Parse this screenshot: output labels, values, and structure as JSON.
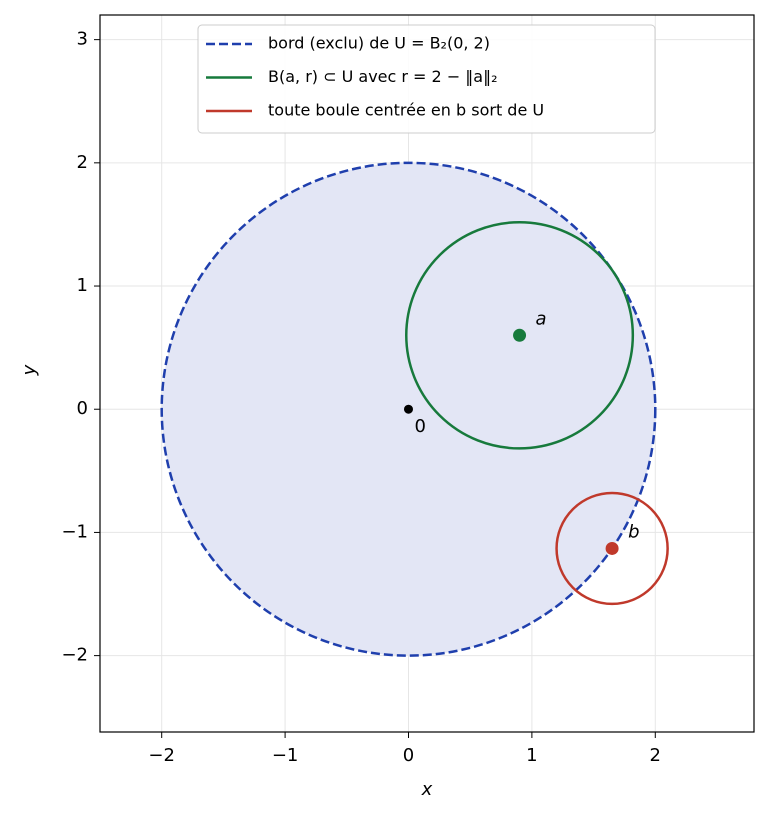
{
  "chart_data": {
    "type": "circle",
    "xlabel": "x",
    "ylabel": "y",
    "xlim": [
      -2.5,
      2.8
    ],
    "ylim": [
      -2.62,
      3.2
    ],
    "xticks": [
      {
        "value": -2,
        "label": "−2"
      },
      {
        "value": -1,
        "label": "−1"
      },
      0,
      1,
      2
    ],
    "yticks": [
      {
        "value": -2,
        "label": "−2"
      },
      {
        "value": -1,
        "label": "−1"
      },
      0,
      1,
      2,
      3
    ],
    "grid": true,
    "legend": "upper center",
    "series": [
      {
        "name": "bord (exclu) de U = B₂(0, 2)",
        "color": "#1f3fad",
        "linestyle": "dashed",
        "fill": "#e3e6f5",
        "x": [
          0
        ],
        "values": [
          0
        ],
        "radius": [
          2
        ]
      },
      {
        "name": "B(a, r) ⊂ U avec r = 2 − ‖a‖₂",
        "color": "#177a3c",
        "linestyle": "solid",
        "x": [
          0.9
        ],
        "values": [
          0.6
        ],
        "radius": [
          0.918
        ]
      },
      {
        "name": "toute boule centrée en b sort de U",
        "color": "#c0392b",
        "linestyle": "solid",
        "x": [
          1.65
        ],
        "values": [
          -1.13
        ],
        "radius": [
          0.45
        ]
      }
    ],
    "points": [
      {
        "label": "0",
        "color": "#000000",
        "x": 0,
        "y": 0
      },
      {
        "label": "a",
        "color": "#177a3c",
        "x": 0.9,
        "y": 0.6
      },
      {
        "label": "b",
        "color": "#c0392b",
        "x": 1.65,
        "y": -1.13
      }
    ]
  }
}
